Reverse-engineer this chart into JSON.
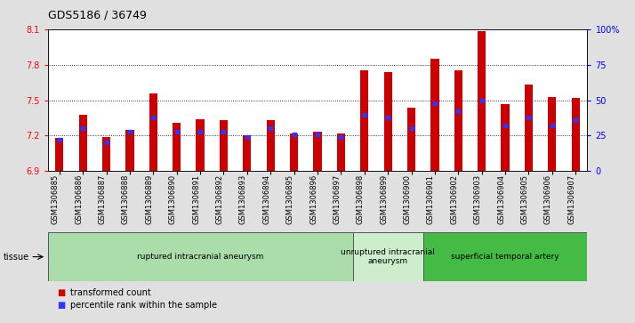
{
  "title": "GDS5186 / 36749",
  "samples": [
    "GSM1306885",
    "GSM1306886",
    "GSM1306887",
    "GSM1306888",
    "GSM1306889",
    "GSM1306890",
    "GSM1306891",
    "GSM1306892",
    "GSM1306893",
    "GSM1306894",
    "GSM1306895",
    "GSM1306896",
    "GSM1306897",
    "GSM1306898",
    "GSM1306899",
    "GSM1306900",
    "GSM1306901",
    "GSM1306902",
    "GSM1306903",
    "GSM1306904",
    "GSM1306905",
    "GSM1306906",
    "GSM1306907"
  ],
  "transformed_count": [
    7.18,
    7.38,
    7.19,
    7.25,
    7.56,
    7.31,
    7.34,
    7.33,
    7.2,
    7.33,
    7.22,
    7.23,
    7.22,
    7.75,
    7.74,
    7.44,
    7.85,
    7.75,
    8.08,
    7.47,
    7.63,
    7.53,
    7.52
  ],
  "percentile_rank": [
    22,
    30,
    20,
    28,
    38,
    28,
    28,
    28,
    24,
    30,
    26,
    26,
    24,
    40,
    38,
    30,
    48,
    42,
    50,
    32,
    38,
    32,
    36
  ],
  "ylim_left": [
    6.9,
    8.1
  ],
  "ylim_right": [
    0,
    100
  ],
  "yticks_left": [
    6.9,
    7.2,
    7.5,
    7.8,
    8.1
  ],
  "yticks_right": [
    0,
    25,
    50,
    75,
    100
  ],
  "ytick_labels_left": [
    "6.9",
    "7.2",
    "7.5",
    "7.8",
    "8.1"
  ],
  "ytick_labels_right": [
    "0",
    "25",
    "50",
    "75",
    "100%"
  ],
  "bar_color": "#cc0000",
  "dot_color": "#3333ff",
  "baseline": 6.9,
  "groups": [
    {
      "label": "ruptured intracranial aneurysm",
      "start": 0,
      "end": 13,
      "color": "#aaddaa"
    },
    {
      "label": "unruptured intracranial\naneurysm",
      "start": 13,
      "end": 16,
      "color": "#cceecc"
    },
    {
      "label": "superficial temporal artery",
      "start": 16,
      "end": 23,
      "color": "#44bb44"
    }
  ],
  "tissue_label": "tissue",
  "legend_bar_label": "transformed count",
  "legend_dot_label": "percentile rank within the sample",
  "fig_bg_color": "#e0e0e0",
  "plot_bg_color": "#ffffff",
  "xtick_bg_color": "#d0d0d0"
}
